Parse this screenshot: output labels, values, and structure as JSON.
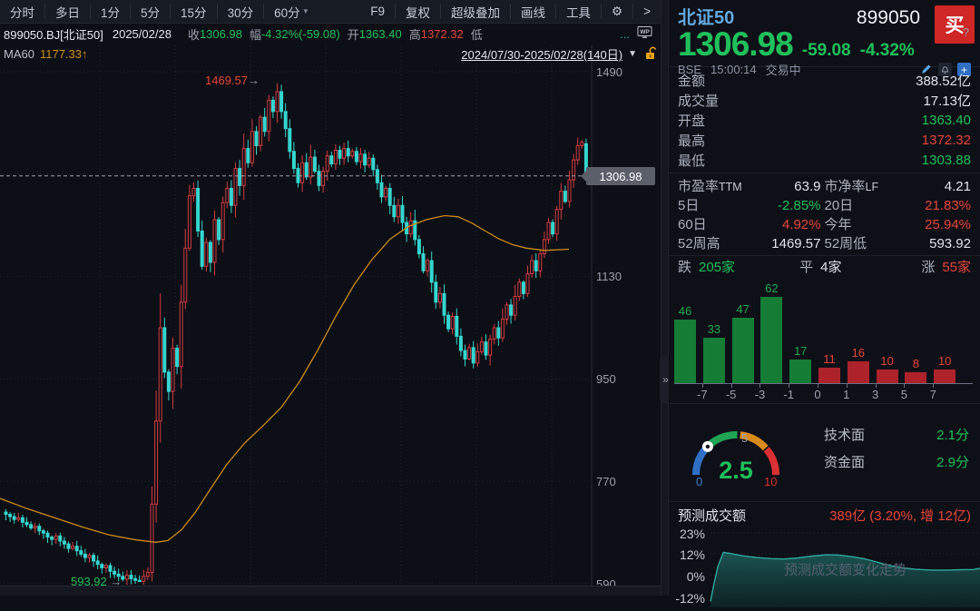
{
  "menubar": {
    "left": [
      "分时",
      "多日",
      "1分",
      "5分",
      "15分",
      "30分",
      "60分"
    ],
    "dropdown": "▾",
    "right": [
      "F9",
      "复权",
      "超级叠加",
      "画线",
      "工具"
    ],
    "gear": "⚙",
    "more": ">"
  },
  "infobar": {
    "symbol": "899050.BJ[北证50]",
    "date": "2025/02/28",
    "close_label": "收",
    "close_value": "1306.98",
    "range_label": "幅",
    "range_value": "-4.32%(-59.08)",
    "open_label": "开",
    "open_value": "1363.40",
    "high_label": "高",
    "high_value": "1372.32",
    "low_label": "低",
    "ellipsis": "..."
  },
  "mabar": {
    "ma_label": "MA60",
    "ma_value": "1177.33↑",
    "date_range": "2024/07/30-2025/02/28(140日)",
    "collapse": "▼"
  },
  "chart_data": {
    "type": "candlestick",
    "title": "北证50 daily candles",
    "y_ticks": [
      "1490",
      "1130",
      "950",
      "770",
      "590"
    ],
    "tick_prices": [
      1490,
      1130,
      950,
      770,
      590
    ],
    "axis": {
      "max": 1490,
      "min": 590
    },
    "price_line": 1306.98,
    "price_tag": "1306.98",
    "high_annotation": "1469.57",
    "low_annotation": "593.92",
    "annotation_arrow": "→",
    "peak_index": 65,
    "low_index": 32,
    "peak_high": 1469.57,
    "low_low": 593.92,
    "last_candle": {
      "open": 1363.4,
      "high": 1372.32,
      "low": 1303.88,
      "close": 1306.98
    },
    "closes": [
      712,
      708,
      703,
      706,
      698,
      694,
      688,
      691,
      683,
      679,
      672,
      668,
      674,
      665,
      660,
      652,
      656,
      648,
      642,
      636,
      640,
      630,
      624,
      618,
      622,
      612,
      607,
      603,
      598,
      605,
      599,
      596,
      594,
      603,
      610,
      730,
      876,
      1040,
      962,
      928,
      1004,
      972,
      1085,
      1180,
      1272,
      1285,
      1210,
      1148,
      1190,
      1155,
      1230,
      1195,
      1260,
      1285,
      1255,
      1320,
      1290,
      1355,
      1330,
      1385,
      1360,
      1410,
      1385,
      1440,
      1420,
      1455,
      1420,
      1390,
      1350,
      1320,
      1295,
      1330,
      1305,
      1340,
      1315,
      1290,
      1315,
      1342,
      1328,
      1352,
      1338,
      1355,
      1342,
      1350,
      1332,
      1345,
      1326,
      1338,
      1318,
      1295,
      1270,
      1285,
      1255,
      1235,
      1255,
      1225,
      1205,
      1228,
      1195,
      1170,
      1140,
      1158,
      1120,
      1085,
      1100,
      1062,
      1038,
      1060,
      1025,
      1000,
      985,
      1005,
      978,
      998,
      1015,
      992,
      1020,
      1040,
      1022,
      1055,
      1080,
      1062,
      1095,
      1120,
      1100,
      1135,
      1158,
      1140,
      1170,
      1195,
      1225,
      1205,
      1248,
      1280,
      1262,
      1300,
      1335,
      1360,
      1366.06,
      1306.98
    ],
    "ma60": [
      [
        0,
        740
      ],
      [
        30,
        722
      ],
      [
        60,
        706
      ],
      [
        90,
        690
      ],
      [
        120,
        676
      ],
      [
        150,
        667
      ],
      [
        172,
        663
      ],
      [
        185,
        666
      ],
      [
        200,
        685
      ],
      [
        215,
        715
      ],
      [
        230,
        752
      ],
      [
        250,
        800
      ],
      [
        270,
        838
      ],
      [
        290,
        868
      ],
      [
        310,
        900
      ],
      [
        330,
        945
      ],
      [
        350,
        1000
      ],
      [
        370,
        1060
      ],
      [
        390,
        1115
      ],
      [
        410,
        1160
      ],
      [
        430,
        1196
      ],
      [
        450,
        1218
      ],
      [
        470,
        1230
      ],
      [
        490,
        1237
      ],
      [
        505,
        1235
      ],
      [
        520,
        1224
      ],
      [
        535,
        1210
      ],
      [
        550,
        1196
      ],
      [
        565,
        1186
      ],
      [
        580,
        1180
      ],
      [
        600,
        1176
      ],
      [
        627,
        1178
      ]
    ]
  },
  "panel": {
    "name": "北证50",
    "code": "899050",
    "buy": "买",
    "price": "1306.98",
    "change": "-59.08",
    "change_pct": "-4.32%",
    "exchange": "BSE",
    "time": "15:00:14",
    "status": "交易中",
    "stats": [
      {
        "label": "金额",
        "value": "388.52亿",
        "color": "white"
      },
      {
        "label": "成交量",
        "value": "17.13亿",
        "color": "white"
      },
      {
        "label": "开盘",
        "value": "1363.40",
        "color": "green"
      },
      {
        "label": "最高",
        "value": "1372.32",
        "color": "red"
      },
      {
        "label": "最低",
        "value": "1303.88",
        "color": "green"
      }
    ],
    "ratios": [
      {
        "l1": "市盈率",
        "s1": "TTM",
        "v1": "63.9",
        "c1": "white",
        "l2": "市净率",
        "s2": "LF",
        "v2": "4.21",
        "c2": "white"
      },
      {
        "l1": "5日",
        "s1": "",
        "v1": "-2.85%",
        "c1": "green",
        "l2": "20日",
        "s2": "",
        "v2": "21.83%",
        "c2": "red"
      },
      {
        "l1": "60日",
        "s1": "",
        "v1": "4.92%",
        "c1": "red",
        "l2": "今年",
        "s2": "",
        "v2": "25.94%",
        "c2": "red"
      },
      {
        "l1": "52周高",
        "s1": "",
        "v1": "1469.57",
        "c1": "white",
        "l2": "52周低",
        "s2": "",
        "v2": "593.92",
        "c2": "white"
      }
    ],
    "breadth": {
      "down_label": "跌",
      "down": "205家",
      "flat_label": "平",
      "flat": "4家",
      "up_label": "涨",
      "up": "55家"
    },
    "histogram": {
      "type": "bar",
      "values": [
        46,
        33,
        47,
        62,
        17,
        11,
        16,
        10,
        8,
        10
      ],
      "colors": [
        "g",
        "g",
        "g",
        "g",
        "g",
        "r",
        "r",
        "r",
        "r",
        "r"
      ],
      "xlabels": [
        "-7",
        "-5",
        "-3",
        "-1",
        "0",
        "1",
        "3",
        "5",
        "7"
      ]
    },
    "gauge": {
      "value": "2.5",
      "min": "0",
      "mid": "5",
      "max": "10",
      "scores": [
        {
          "label": "技术面",
          "value": "2.1分"
        },
        {
          "label": "资金面",
          "value": "2.9分"
        }
      ]
    },
    "forecast": {
      "label": "预测成交额",
      "value": "389亿 (3.20%, 增 12亿)",
      "help": "?",
      "y_labels": [
        "23%",
        "12%",
        "0%",
        "-12%"
      ],
      "watermark": "预测成交额变化走势",
      "points": [
        [
          0,
          -14
        ],
        [
          4,
          -4
        ],
        [
          8,
          5
        ],
        [
          14,
          12.6
        ],
        [
          22,
          12.0
        ],
        [
          34,
          10.8
        ],
        [
          50,
          9.8
        ],
        [
          66,
          9.2
        ],
        [
          80,
          9.0
        ],
        [
          95,
          9.6
        ],
        [
          110,
          10.6
        ],
        [
          125,
          11.3
        ],
        [
          138,
          11.2
        ],
        [
          152,
          10.4
        ],
        [
          166,
          9.2
        ],
        [
          180,
          7.4
        ],
        [
          194,
          5.4
        ],
        [
          208,
          4.2
        ],
        [
          222,
          3.4
        ],
        [
          240,
          3.0
        ],
        [
          258,
          3.0
        ],
        [
          272,
          3.2
        ],
        [
          285,
          3.3
        ],
        [
          292,
          4.0
        ]
      ]
    }
  }
}
